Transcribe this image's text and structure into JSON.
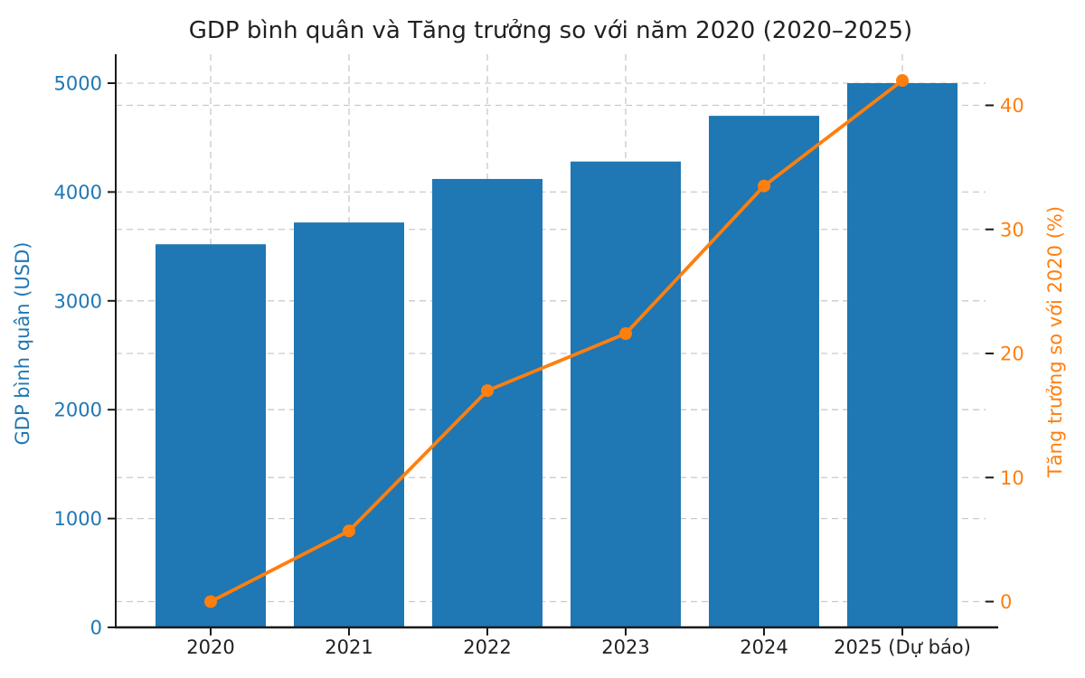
{
  "chart_data": {
    "type": "bar",
    "subtype": "dual-axis bar + line combo",
    "title": "GDP bình quân và Tăng trưởng so với năm 2020 (2020–2025)",
    "categories": [
      "2020",
      "2021",
      "2022",
      "2023",
      "2024",
      "2025 (Dự báo)"
    ],
    "series": [
      {
        "name": "GDP bình quân (USD)",
        "type": "bar",
        "axis": "left",
        "color": "#1f77b4",
        "values": [
          3520,
          3720,
          4120,
          4280,
          4700,
          5000
        ]
      },
      {
        "name": "Tăng trưởng so với 2020 (%)",
        "type": "line",
        "axis": "right",
        "color": "#ff7f0e",
        "marker": "circle",
        "values": [
          0.0,
          5.7,
          17.0,
          21.6,
          33.5,
          42.0
        ]
      }
    ],
    "xlabel": "",
    "left_axis": {
      "label": "GDP bình quân (USD)",
      "ticks": [
        0,
        1000,
        2000,
        3000,
        4000,
        5000
      ],
      "range": [
        0,
        5270
      ],
      "color": "#1f77b4"
    },
    "right_axis": {
      "label": "Tăng trưởng so với 2020 (%)",
      "ticks": [
        0,
        10,
        20,
        30,
        40
      ],
      "range": [
        -2.1,
        44.2
      ],
      "color": "#ff7f0e"
    },
    "grid": {
      "style": "dashed",
      "color": "#c9c9c9",
      "horizontal": "major ticks of both y-axes",
      "vertical": "at each category center"
    },
    "legend": "none",
    "colors": {
      "bar_fill": "#1f77b4",
      "line_stroke": "#ff7f0e",
      "title_text": "#212121",
      "x_tick_text": "#212121",
      "spine": "#1a1a1a",
      "background": "#ffffff"
    }
  }
}
